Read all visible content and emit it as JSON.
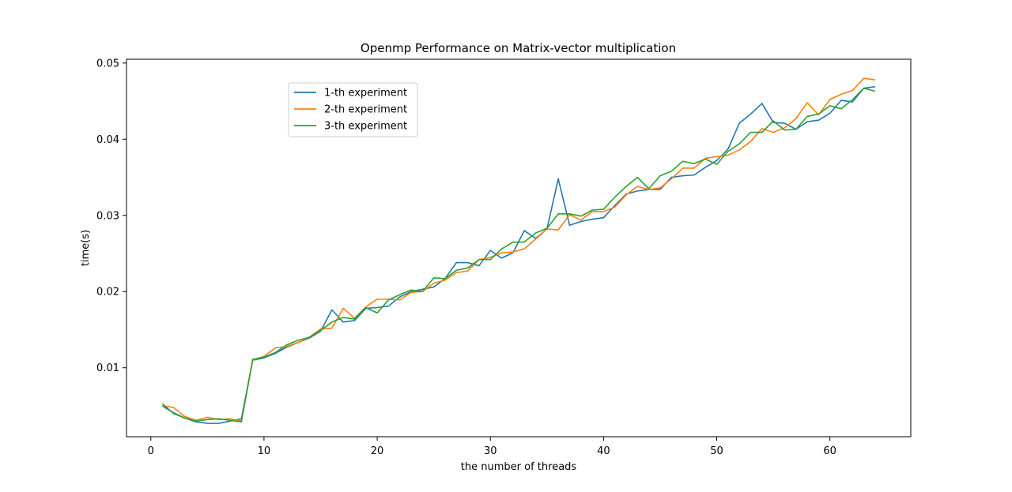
{
  "chart_data": {
    "type": "line",
    "title": "Openmp Performance on Matrix-vector multiplication",
    "xlabel": "the number of threads",
    "ylabel": "time(s)",
    "xlim": [
      -2.15,
      67.15
    ],
    "ylim": [
      0.00095,
      0.0505
    ],
    "x_ticks": [
      0,
      10,
      20,
      30,
      40,
      50,
      60
    ],
    "y_ticks": [
      0.01,
      0.02,
      0.03,
      0.04,
      0.05
    ],
    "x_tick_labels": [
      "0",
      "10",
      "20",
      "30",
      "40",
      "50",
      "60"
    ],
    "y_tick_labels": [
      "0.01",
      "0.02",
      "0.03",
      "0.04",
      "0.05"
    ],
    "grid": false,
    "legend_position": "upper-left",
    "x": [
      1,
      2,
      3,
      4,
      5,
      6,
      7,
      8,
      9,
      10,
      11,
      12,
      13,
      14,
      15,
      16,
      17,
      18,
      19,
      20,
      21,
      22,
      23,
      24,
      25,
      26,
      27,
      28,
      29,
      30,
      31,
      32,
      33,
      34,
      35,
      36,
      37,
      38,
      39,
      40,
      41,
      42,
      43,
      44,
      45,
      46,
      47,
      48,
      49,
      50,
      51,
      52,
      53,
      54,
      55,
      56,
      57,
      58,
      59,
      60,
      61,
      62,
      63,
      64
    ],
    "series": [
      {
        "name": "1-th experiment",
        "color": "#1f77b4",
        "values": [
          0.005,
          0.0041,
          0.0034,
          0.0029,
          0.0027,
          0.0027,
          0.003,
          0.0033,
          0.011,
          0.0113,
          0.0119,
          0.0127,
          0.0133,
          0.0139,
          0.0148,
          0.0176,
          0.016,
          0.0162,
          0.0178,
          0.0179,
          0.0181,
          0.0193,
          0.02,
          0.0203,
          0.0206,
          0.0217,
          0.0238,
          0.0238,
          0.0234,
          0.0254,
          0.0244,
          0.0251,
          0.028,
          0.027,
          0.0282,
          0.0348,
          0.0287,
          0.0292,
          0.0295,
          0.0297,
          0.0313,
          0.0328,
          0.0332,
          0.0334,
          0.0334,
          0.035,
          0.0352,
          0.0353,
          0.0363,
          0.0372,
          0.0387,
          0.0421,
          0.0433,
          0.0447,
          0.0422,
          0.0421,
          0.0413,
          0.0423,
          0.0425,
          0.0434,
          0.0451,
          0.0449,
          0.0467,
          0.0469
        ]
      },
      {
        "name": "2-th experiment",
        "color": "#ff7f0e",
        "values": [
          0.005,
          0.0048,
          0.0036,
          0.0031,
          0.0035,
          0.0032,
          0.0033,
          0.003,
          0.011,
          0.0115,
          0.0126,
          0.0128,
          0.0133,
          0.014,
          0.0151,
          0.0152,
          0.0178,
          0.0165,
          0.018,
          0.019,
          0.019,
          0.0189,
          0.0199,
          0.02,
          0.0211,
          0.0215,
          0.0225,
          0.0227,
          0.0242,
          0.0245,
          0.0251,
          0.0252,
          0.0256,
          0.0269,
          0.0282,
          0.0281,
          0.0301,
          0.0294,
          0.0305,
          0.0305,
          0.0311,
          0.0327,
          0.0338,
          0.0334,
          0.0336,
          0.0348,
          0.0362,
          0.0362,
          0.0375,
          0.0377,
          0.0379,
          0.0386,
          0.0397,
          0.0414,
          0.0409,
          0.0415,
          0.0427,
          0.0448,
          0.0432,
          0.0452,
          0.0459,
          0.0464,
          0.048,
          0.0478
        ]
      },
      {
        "name": "3-th experiment",
        "color": "#2ca02c",
        "values": [
          0.0053,
          0.004,
          0.0034,
          0.003,
          0.0032,
          0.0033,
          0.0031,
          0.0029,
          0.0111,
          0.0114,
          0.012,
          0.013,
          0.0136,
          0.014,
          0.0149,
          0.016,
          0.0166,
          0.0164,
          0.0179,
          0.0172,
          0.0189,
          0.0196,
          0.0202,
          0.02,
          0.0218,
          0.0217,
          0.0228,
          0.0231,
          0.0242,
          0.0242,
          0.0256,
          0.0265,
          0.0265,
          0.0277,
          0.0283,
          0.0302,
          0.0302,
          0.0299,
          0.0307,
          0.0308,
          0.0324,
          0.0338,
          0.035,
          0.0335,
          0.0352,
          0.0358,
          0.0371,
          0.0368,
          0.0374,
          0.0367,
          0.0384,
          0.0394,
          0.0409,
          0.0409,
          0.0424,
          0.0412,
          0.0413,
          0.043,
          0.0433,
          0.0444,
          0.044,
          0.0452,
          0.0467,
          0.0463
        ]
      }
    ]
  }
}
